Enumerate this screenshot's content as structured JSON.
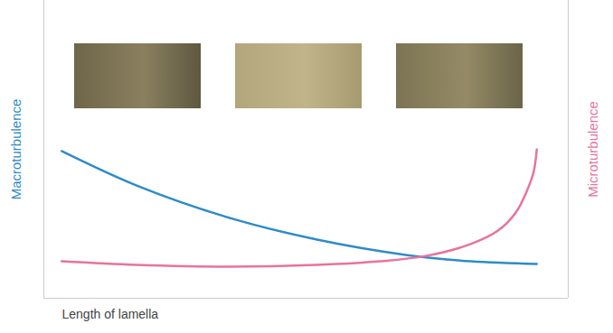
{
  "chart_data": {
    "type": "line",
    "xlabel": "Length of lamella",
    "ylabel": "Macroturbulence",
    "y2label": "Microturbulence",
    "xlim": [
      0,
      10
    ],
    "ylim": [
      0,
      10
    ],
    "y2lim": [
      0,
      10
    ],
    "xticks": [],
    "yticks": [],
    "y2ticks": [],
    "tick_labels": false,
    "grid": false,
    "series": [
      {
        "name": "Macroturbulence",
        "color": "#2e8bc8",
        "axis": "y",
        "x": [
          0.34,
          1.76,
          3.48,
          5.21,
          6.93,
          8.14,
          9.4
        ],
        "values": [
          4.94,
          3.79,
          2.73,
          1.97,
          1.45,
          1.24,
          1.15
        ]
      },
      {
        "name": "Microturbulence",
        "color": "#e8739c",
        "axis": "y2",
        "x": [
          0.34,
          1.76,
          3.48,
          5.21,
          6.41,
          7.28,
          8.14,
          8.66,
          9.0,
          9.22,
          9.34,
          9.4
        ],
        "values": [
          1.24,
          1.12,
          1.06,
          1.12,
          1.24,
          1.42,
          1.82,
          2.27,
          2.88,
          3.64,
          4.24,
          5.0
        ]
      }
    ]
  }
}
